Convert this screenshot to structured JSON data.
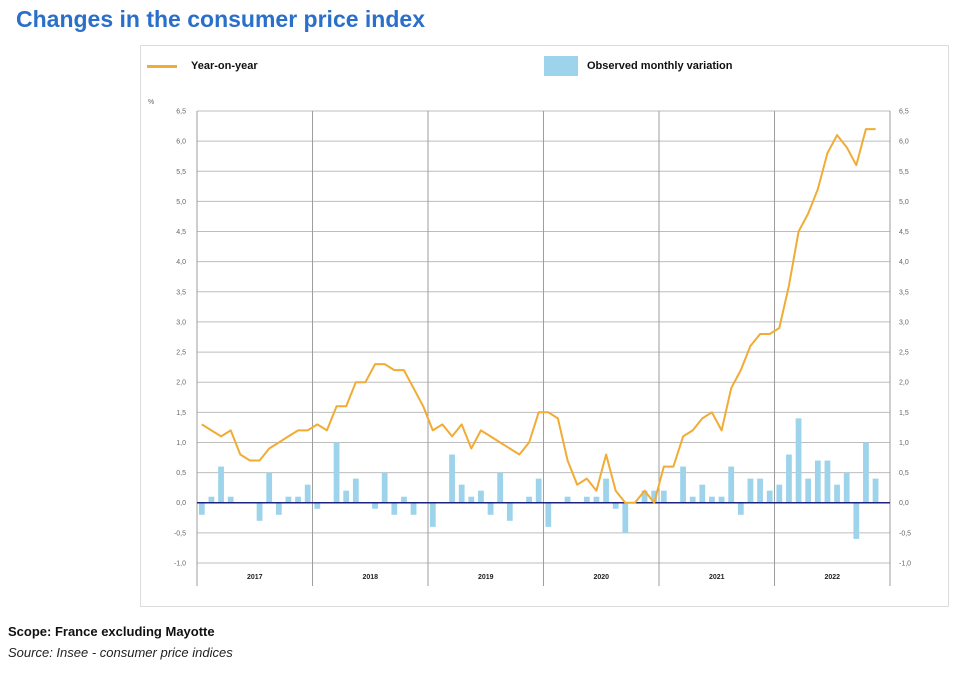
{
  "title": "Changes in the consumer price index",
  "footer": {
    "scope": "Scope: France excluding Mayotte",
    "source": "Source: Insee - consumer price indices"
  },
  "colors": {
    "line": "#f0ac35",
    "bar": "#9dd4ec",
    "zero": "#1a237e",
    "title": "#2a6fc9"
  },
  "chart_data": {
    "type": "bar",
    "title": "Changes in the consumer price index",
    "ylabel": "%",
    "ylim": [
      -1.0,
      6.5
    ],
    "yticks": [
      "6,5",
      "6,0",
      "5,5",
      "5,0",
      "4,5",
      "4,0",
      "3,5",
      "3,0",
      "2,5",
      "2,0",
      "1,5",
      "1,0",
      "0,5",
      "0,0",
      "-0,5",
      "-1,0"
    ],
    "ytick_values": [
      6.5,
      6.0,
      5.5,
      5.0,
      4.5,
      4.0,
      3.5,
      3.0,
      2.5,
      2.0,
      1.5,
      1.0,
      0.5,
      0.0,
      -0.5,
      -1.0
    ],
    "years": [
      "2017",
      "2018",
      "2019",
      "2020",
      "2021",
      "2022"
    ],
    "months_per_year": 12,
    "grid": true,
    "legend_position": "top",
    "series": [
      {
        "name": "Year-on-year",
        "type": "line",
        "values": [
          1.3,
          1.2,
          1.1,
          1.2,
          0.8,
          0.7,
          0.7,
          0.9,
          1.0,
          1.1,
          1.2,
          1.2,
          1.3,
          1.2,
          1.6,
          1.6,
          2.0,
          2.0,
          2.3,
          2.3,
          2.2,
          2.2,
          1.9,
          1.6,
          1.2,
          1.3,
          1.1,
          1.3,
          0.9,
          1.2,
          1.1,
          1.0,
          0.9,
          0.8,
          1.0,
          1.5,
          1.5,
          1.4,
          0.7,
          0.3,
          0.4,
          0.2,
          0.8,
          0.2,
          0.0,
          0.0,
          0.2,
          0.0,
          0.6,
          0.6,
          1.1,
          1.2,
          1.4,
          1.5,
          1.2,
          1.9,
          2.2,
          2.6,
          2.8,
          2.8,
          2.9,
          3.6,
          4.5,
          4.8,
          5.2,
          5.8,
          6.1,
          5.9,
          5.6,
          6.2,
          6.2
        ]
      },
      {
        "name": "Observed monthly variation",
        "type": "bar",
        "values": [
          -0.2,
          0.1,
          0.6,
          0.1,
          0.0,
          0.0,
          -0.3,
          0.5,
          -0.2,
          0.1,
          0.1,
          0.3,
          -0.1,
          0.0,
          1.0,
          0.2,
          0.4,
          0.0,
          -0.1,
          0.5,
          -0.2,
          0.1,
          -0.2,
          0.0,
          -0.4,
          0.0,
          0.8,
          0.3,
          0.1,
          0.2,
          -0.2,
          0.5,
          -0.3,
          0.0,
          0.1,
          0.4,
          -0.4,
          0.0,
          0.1,
          0.0,
          0.1,
          0.1,
          0.4,
          -0.1,
          -0.5,
          0.0,
          0.2,
          0.2,
          0.2,
          0.0,
          0.6,
          0.1,
          0.3,
          0.1,
          0.1,
          0.6,
          -0.2,
          0.4,
          0.4,
          0.2,
          0.3,
          0.8,
          1.4,
          0.4,
          0.7,
          0.7,
          0.3,
          0.5,
          -0.6,
          1.0,
          0.4
        ]
      }
    ]
  }
}
